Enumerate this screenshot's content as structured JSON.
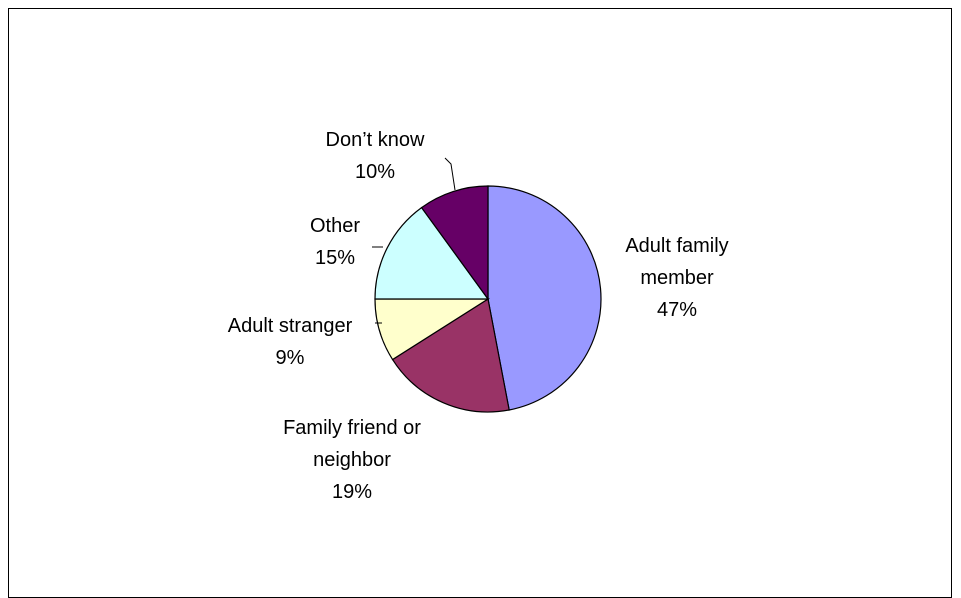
{
  "chart_data": {
    "type": "pie",
    "title": "",
    "start_angle_deg": 0,
    "direction": "clockwise",
    "slices": [
      {
        "label": "Adult family member",
        "label_lines": [
          "Adult family",
          "member"
        ],
        "value": 47,
        "pct_text": "47%",
        "color": "#9999ff"
      },
      {
        "label": "Family friend or neighbor",
        "label_lines": [
          "Family friend or",
          "neighbor"
        ],
        "value": 19,
        "pct_text": "19%",
        "color": "#993366"
      },
      {
        "label": "Adult stranger",
        "label_lines": [
          "Adult stranger"
        ],
        "value": 9,
        "pct_text": "9%",
        "color": "#ffffcc"
      },
      {
        "label": "Other",
        "label_lines": [
          "Other"
        ],
        "value": 15,
        "pct_text": "15%",
        "color": "#ccffff"
      },
      {
        "label": "Don’t know",
        "label_lines": [
          "Don’t know"
        ],
        "value": 10,
        "pct_text": "10%",
        "color": "#660066"
      }
    ]
  }
}
